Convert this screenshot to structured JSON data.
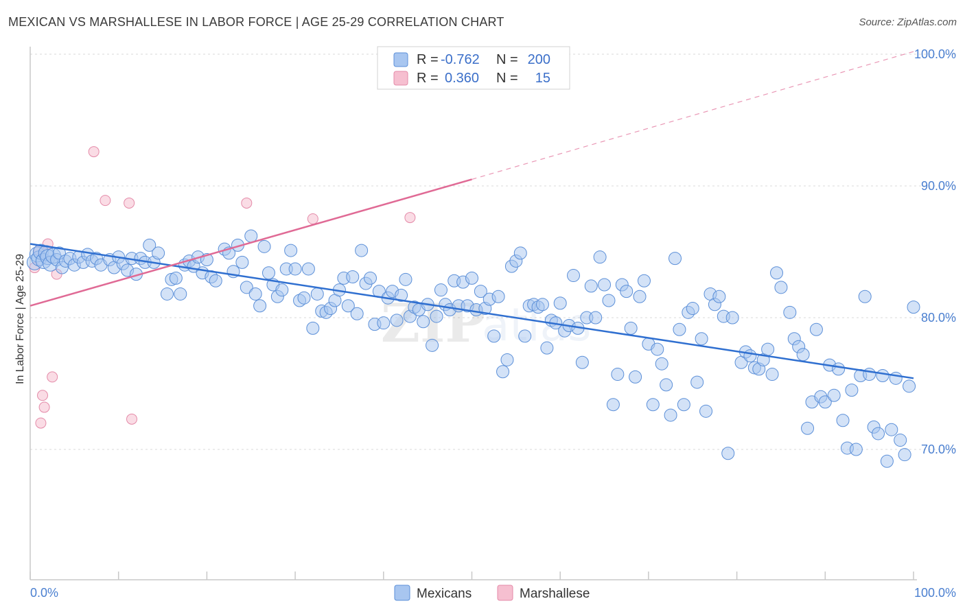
{
  "title": "MEXICAN VS MARSHALLESE IN LABOR FORCE | AGE 25-29 CORRELATION CHART",
  "source": "Source: ZipAtlas.com",
  "colors": {
    "mexicans_fill": "#a8c6f0",
    "mexicans_stroke": "#5b8fd8",
    "mexicans_line": "#2f6fd0",
    "marshallese_fill": "#f6bfd0",
    "marshallese_stroke": "#e48aa8",
    "marshallese_line": "#e06a95",
    "tick_text": "#4a7fd0",
    "grid": "#d8d8d8"
  },
  "legend": {
    "rows": [
      {
        "r_label": "R =",
        "r_value": "-0.762",
        "n_label": "N =",
        "n_value": "200"
      },
      {
        "r_label": "R =",
        "r_value": "0.360",
        "n_label": "N =",
        "n_value": "15"
      }
    ]
  },
  "bottom_legend": [
    "Mexicans",
    "Marshallese"
  ],
  "chart_data": {
    "type": "scatter",
    "title": "MEXICAN VS MARSHALLESE IN LABOR FORCE | AGE 25-29 CORRELATION CHART",
    "xlabel": "",
    "ylabel": "In Labor Force | Age 25-29",
    "xlim": [
      0,
      100
    ],
    "ylim": [
      60,
      101
    ],
    "x_tick_labels": [
      "0.0%",
      "100.0%"
    ],
    "y_ticks": [
      70,
      80,
      90,
      100
    ],
    "y_tick_labels": [
      "70.0%",
      "80.0%",
      "90.0%",
      "100.0%"
    ],
    "grid": true,
    "legend_position": "top-center",
    "series": [
      {
        "name": "Mexicans",
        "trend": {
          "x0": 0,
          "y0": 85.6,
          "x1": 100,
          "y1": 75.4
        },
        "points": [
          [
            0.5,
            84.2
          ],
          [
            0.8,
            84.8
          ],
          [
            1.0,
            84.5
          ],
          [
            1.2,
            85.0
          ],
          [
            1.5,
            84.3
          ],
          [
            1.8,
            84.9
          ],
          [
            2.0,
            84.6
          ],
          [
            2.3,
            84.1
          ],
          [
            2.6,
            84.7
          ],
          [
            3.0,
            84.4
          ],
          [
            3.3,
            84.9
          ],
          [
            3.6,
            83.8
          ],
          [
            4.0,
            84.3
          ],
          [
            4.5,
            84.5
          ],
          [
            5.0,
            84.0
          ],
          [
            5.5,
            84.6
          ],
          [
            6.0,
            84.2
          ],
          [
            6.5,
            84.8
          ],
          [
            7.0,
            84.3
          ],
          [
            7.5,
            84.5
          ],
          [
            8.0,
            84.0
          ],
          [
            9.0,
            84.4
          ],
          [
            9.5,
            83.8
          ],
          [
            10.0,
            84.6
          ],
          [
            10.5,
            84.1
          ],
          [
            11.0,
            83.6
          ],
          [
            11.5,
            84.5
          ],
          [
            12.0,
            83.3
          ],
          [
            12.5,
            84.5
          ],
          [
            13.0,
            84.2
          ],
          [
            13.5,
            85.5
          ],
          [
            14.0,
            84.2
          ],
          [
            14.5,
            84.9
          ],
          [
            15.5,
            81.8
          ],
          [
            16.0,
            82.9
          ],
          [
            16.5,
            83.0
          ],
          [
            17.0,
            81.8
          ],
          [
            17.5,
            84.0
          ],
          [
            18.0,
            84.3
          ],
          [
            18.5,
            83.9
          ],
          [
            19.0,
            84.6
          ],
          [
            19.5,
            83.4
          ],
          [
            20.0,
            84.4
          ],
          [
            20.5,
            83.1
          ],
          [
            21.0,
            82.8
          ],
          [
            22.0,
            85.2
          ],
          [
            22.5,
            84.9
          ],
          [
            23.0,
            83.5
          ],
          [
            23.5,
            85.5
          ],
          [
            24.0,
            84.2
          ],
          [
            24.5,
            82.3
          ],
          [
            25.0,
            86.2
          ],
          [
            25.5,
            81.8
          ],
          [
            26.0,
            80.9
          ],
          [
            26.5,
            85.4
          ],
          [
            27.0,
            83.4
          ],
          [
            27.5,
            82.5
          ],
          [
            28.0,
            81.6
          ],
          [
            28.5,
            82.1
          ],
          [
            29.0,
            83.7
          ],
          [
            29.5,
            85.1
          ],
          [
            30.0,
            83.7
          ],
          [
            30.5,
            81.3
          ],
          [
            31.0,
            81.5
          ],
          [
            31.5,
            83.7
          ],
          [
            32.0,
            79.2
          ],
          [
            32.5,
            81.8
          ],
          [
            33.0,
            80.5
          ],
          [
            33.5,
            80.4
          ],
          [
            34.0,
            80.7
          ],
          [
            34.5,
            81.3
          ],
          [
            35.0,
            82.1
          ],
          [
            35.5,
            83.0
          ],
          [
            36.0,
            80.9
          ],
          [
            36.5,
            83.1
          ],
          [
            37.0,
            80.3
          ],
          [
            37.5,
            85.1
          ],
          [
            38.0,
            82.6
          ],
          [
            38.5,
            83.0
          ],
          [
            39.0,
            79.5
          ],
          [
            39.5,
            82.0
          ],
          [
            40.0,
            79.6
          ],
          [
            40.5,
            81.5
          ],
          [
            41.0,
            82.0
          ],
          [
            41.5,
            79.8
          ],
          [
            42.0,
            81.7
          ],
          [
            42.5,
            82.9
          ],
          [
            43.0,
            80.1
          ],
          [
            43.5,
            80.8
          ],
          [
            44.0,
            80.6
          ],
          [
            44.5,
            79.7
          ],
          [
            45.0,
            81.0
          ],
          [
            45.5,
            77.9
          ],
          [
            46.0,
            80.1
          ],
          [
            46.5,
            82.1
          ],
          [
            47.0,
            81.0
          ],
          [
            47.5,
            80.6
          ],
          [
            48.0,
            82.8
          ],
          [
            48.5,
            80.9
          ],
          [
            49.0,
            82.7
          ],
          [
            49.5,
            80.9
          ],
          [
            50.0,
            83.0
          ],
          [
            50.5,
            80.6
          ],
          [
            51.0,
            82.0
          ],
          [
            51.5,
            80.7
          ],
          [
            52.0,
            81.4
          ],
          [
            52.5,
            78.6
          ],
          [
            53.0,
            81.6
          ],
          [
            53.5,
            75.9
          ],
          [
            54.0,
            76.8
          ],
          [
            54.5,
            83.9
          ],
          [
            55.0,
            84.3
          ],
          [
            55.5,
            84.9
          ],
          [
            56.0,
            78.6
          ],
          [
            56.5,
            80.9
          ],
          [
            57.0,
            81.0
          ],
          [
            57.5,
            80.8
          ],
          [
            58.0,
            81.0
          ],
          [
            58.5,
            77.7
          ],
          [
            59.0,
            79.8
          ],
          [
            59.5,
            79.6
          ],
          [
            60.0,
            81.1
          ],
          [
            60.5,
            79.0
          ],
          [
            61.0,
            79.4
          ],
          [
            61.5,
            83.2
          ],
          [
            62.0,
            79.2
          ],
          [
            62.5,
            76.6
          ],
          [
            63.0,
            80.0
          ],
          [
            63.5,
            82.4
          ],
          [
            64.0,
            80.0
          ],
          [
            64.5,
            84.6
          ],
          [
            65.0,
            82.5
          ],
          [
            65.5,
            81.3
          ],
          [
            66.0,
            73.4
          ],
          [
            66.5,
            75.7
          ],
          [
            67.0,
            82.5
          ],
          [
            67.5,
            82.0
          ],
          [
            68.0,
            79.2
          ],
          [
            68.5,
            75.5
          ],
          [
            69.0,
            81.6
          ],
          [
            69.5,
            82.8
          ],
          [
            70.0,
            78.0
          ],
          [
            70.5,
            73.4
          ],
          [
            71.0,
            77.6
          ],
          [
            71.5,
            76.5
          ],
          [
            72.0,
            74.9
          ],
          [
            72.5,
            72.6
          ],
          [
            73.0,
            84.5
          ],
          [
            73.5,
            79.1
          ],
          [
            74.0,
            73.4
          ],
          [
            74.5,
            80.4
          ],
          [
            75.0,
            80.7
          ],
          [
            75.5,
            75.1
          ],
          [
            76.0,
            78.4
          ],
          [
            76.5,
            72.9
          ],
          [
            77.0,
            81.8
          ],
          [
            77.5,
            81.0
          ],
          [
            78.0,
            81.6
          ],
          [
            78.5,
            80.1
          ],
          [
            79.0,
            69.7
          ],
          [
            79.5,
            80.0
          ],
          [
            80.5,
            76.6
          ],
          [
            81.0,
            77.4
          ],
          [
            81.5,
            77.1
          ],
          [
            82.0,
            76.2
          ],
          [
            82.5,
            76.1
          ],
          [
            83.0,
            76.8
          ],
          [
            83.5,
            77.6
          ],
          [
            84.0,
            75.7
          ],
          [
            84.5,
            83.4
          ],
          [
            85.0,
            82.3
          ],
          [
            86.0,
            80.4
          ],
          [
            86.5,
            78.4
          ],
          [
            87.0,
            77.8
          ],
          [
            87.5,
            77.2
          ],
          [
            88.0,
            71.6
          ],
          [
            88.5,
            73.6
          ],
          [
            89.0,
            79.1
          ],
          [
            89.5,
            74.0
          ],
          [
            90.0,
            73.6
          ],
          [
            90.5,
            76.4
          ],
          [
            91.0,
            74.1
          ],
          [
            91.5,
            76.1
          ],
          [
            92.0,
            72.2
          ],
          [
            92.5,
            70.1
          ],
          [
            93.0,
            74.5
          ],
          [
            93.5,
            70.0
          ],
          [
            94.0,
            75.6
          ],
          [
            94.5,
            81.6
          ],
          [
            95.0,
            75.7
          ],
          [
            95.5,
            71.7
          ],
          [
            96.0,
            71.2
          ],
          [
            96.5,
            75.6
          ],
          [
            97.0,
            69.1
          ],
          [
            97.5,
            71.5
          ],
          [
            98.0,
            75.4
          ],
          [
            98.5,
            70.7
          ],
          [
            99.0,
            69.6
          ],
          [
            99.5,
            74.8
          ],
          [
            100.0,
            80.8
          ]
        ]
      },
      {
        "name": "Marshallese",
        "trend": {
          "x0": 0,
          "y0": 80.9,
          "x1": 50,
          "y1": 90.5,
          "x_dash_end": 100,
          "y_dash_end": 100.2
        },
        "points": [
          [
            0.5,
            83.8
          ],
          [
            1.0,
            85.1
          ],
          [
            1.2,
            72.0
          ],
          [
            1.4,
            74.1
          ],
          [
            1.6,
            73.2
          ],
          [
            2.0,
            85.6
          ],
          [
            2.5,
            75.5
          ],
          [
            3.0,
            83.3
          ],
          [
            7.2,
            92.6
          ],
          [
            8.5,
            88.9
          ],
          [
            11.2,
            88.7
          ],
          [
            11.5,
            72.3
          ],
          [
            24.5,
            88.7
          ],
          [
            32.0,
            87.5
          ],
          [
            43.0,
            87.6
          ]
        ]
      }
    ]
  }
}
